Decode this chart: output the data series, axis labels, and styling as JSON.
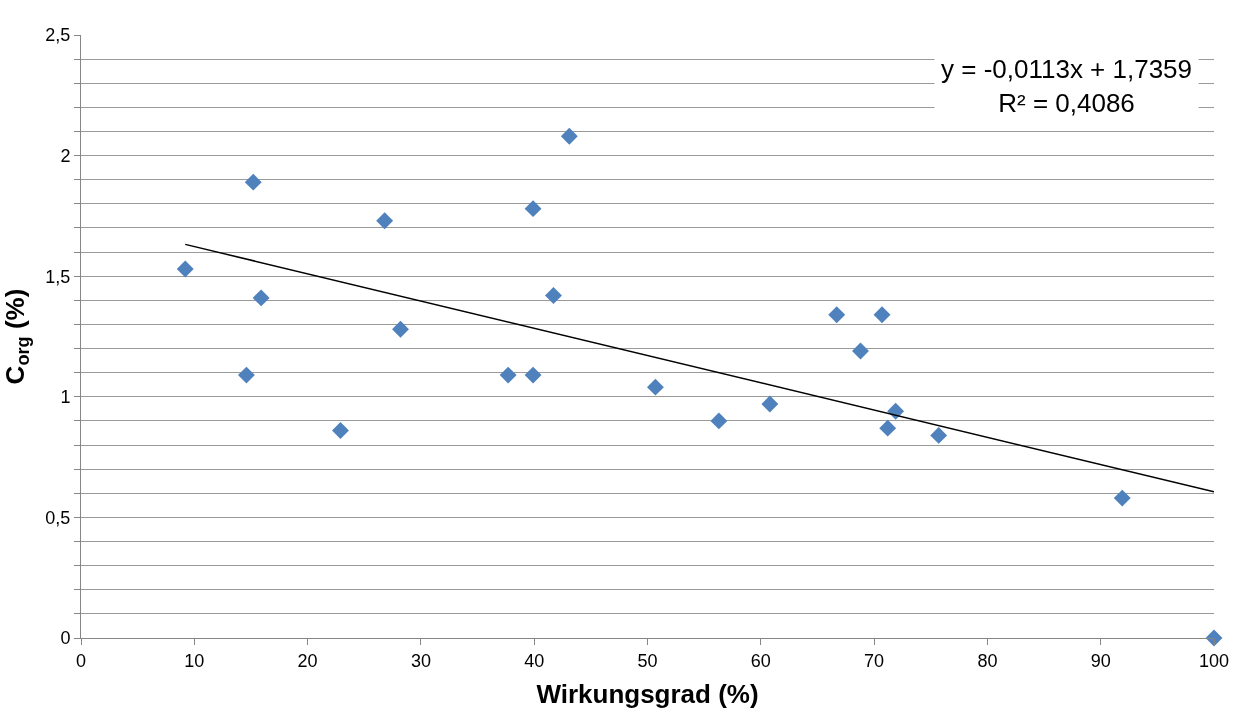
{
  "chart_data": {
    "type": "scatter",
    "xlabel": "Wirkungsgrad (%)",
    "ylabel": "C$_{org}$ (%)",
    "annotations": [
      "y = -0,0113x + 1,7359\nR² = 0,4086"
    ],
    "x": [
      9.2,
      15.2,
      15.9,
      14.6,
      22.9,
      26.8,
      28.2,
      37.7,
      39.9,
      39.9,
      41.7,
      43.1,
      50.7,
      56.3,
      60.8,
      66.7,
      70.7,
      68.8,
      71.9,
      71.2,
      75.7,
      91.9,
      100
    ],
    "series": [
      {
        "color": "#4f81bd",
        "marker": "diamond",
        "values": [
          1.53,
          1.89,
          1.41,
          1.09,
          0.86,
          1.73,
          1.28,
          1.09,
          1.78,
          1.09,
          1.42,
          2.08,
          1.04,
          0.9,
          0.97,
          1.34,
          1.34,
          1.19,
          0.94,
          0.87,
          0.84,
          0.58,
          0
        ]
      },
      {
        "type": "line",
        "color": "#000000",
        "marker": "none",
        "line_style": "solid",
        "x": [
          9.2,
          100
        ],
        "values": [
          1.632,
          0.606
        ]
      }
    ],
    "xlim": [
      0,
      100
    ],
    "xticks": [
      0,
      10,
      20,
      30,
      40,
      50,
      60,
      70,
      80,
      90,
      100
    ],
    "ylim": [
      0,
      2.5
    ],
    "yticks": [
      {
        "value": 0,
        "label": "0"
      },
      {
        "value": 0.1,
        "label": null
      },
      {
        "value": 0.2,
        "label": null
      },
      {
        "value": 0.3,
        "label": null
      },
      {
        "value": 0.4,
        "label": null
      },
      {
        "value": 0.5,
        "label": "0,5"
      },
      {
        "value": 0.6,
        "label": null
      },
      {
        "value": 0.7,
        "label": null
      },
      {
        "value": 0.8,
        "label": null
      },
      {
        "value": 0.9,
        "label": null
      },
      {
        "value": 1,
        "label": "1"
      },
      {
        "value": 1.1,
        "label": null
      },
      {
        "value": 1.2,
        "label": null
      },
      {
        "value": 1.3,
        "label": null
      },
      {
        "value": 1.4,
        "label": null
      },
      {
        "value": 1.5,
        "label": "1,5"
      },
      {
        "value": 1.6,
        "label": null
      },
      {
        "value": 1.7,
        "label": null
      },
      {
        "value": 1.8,
        "label": null
      },
      {
        "value": 1.9,
        "label": null
      },
      {
        "value": 2,
        "label": "2"
      },
      {
        "value": 2.1,
        "label": null
      },
      {
        "value": 2.2,
        "label": null
      },
      {
        "value": 2.3,
        "label": null
      },
      {
        "value": 2.4,
        "label": null
      },
      {
        "value": 2.5,
        "label": "2,5"
      }
    ],
    "grid": "y"
  }
}
